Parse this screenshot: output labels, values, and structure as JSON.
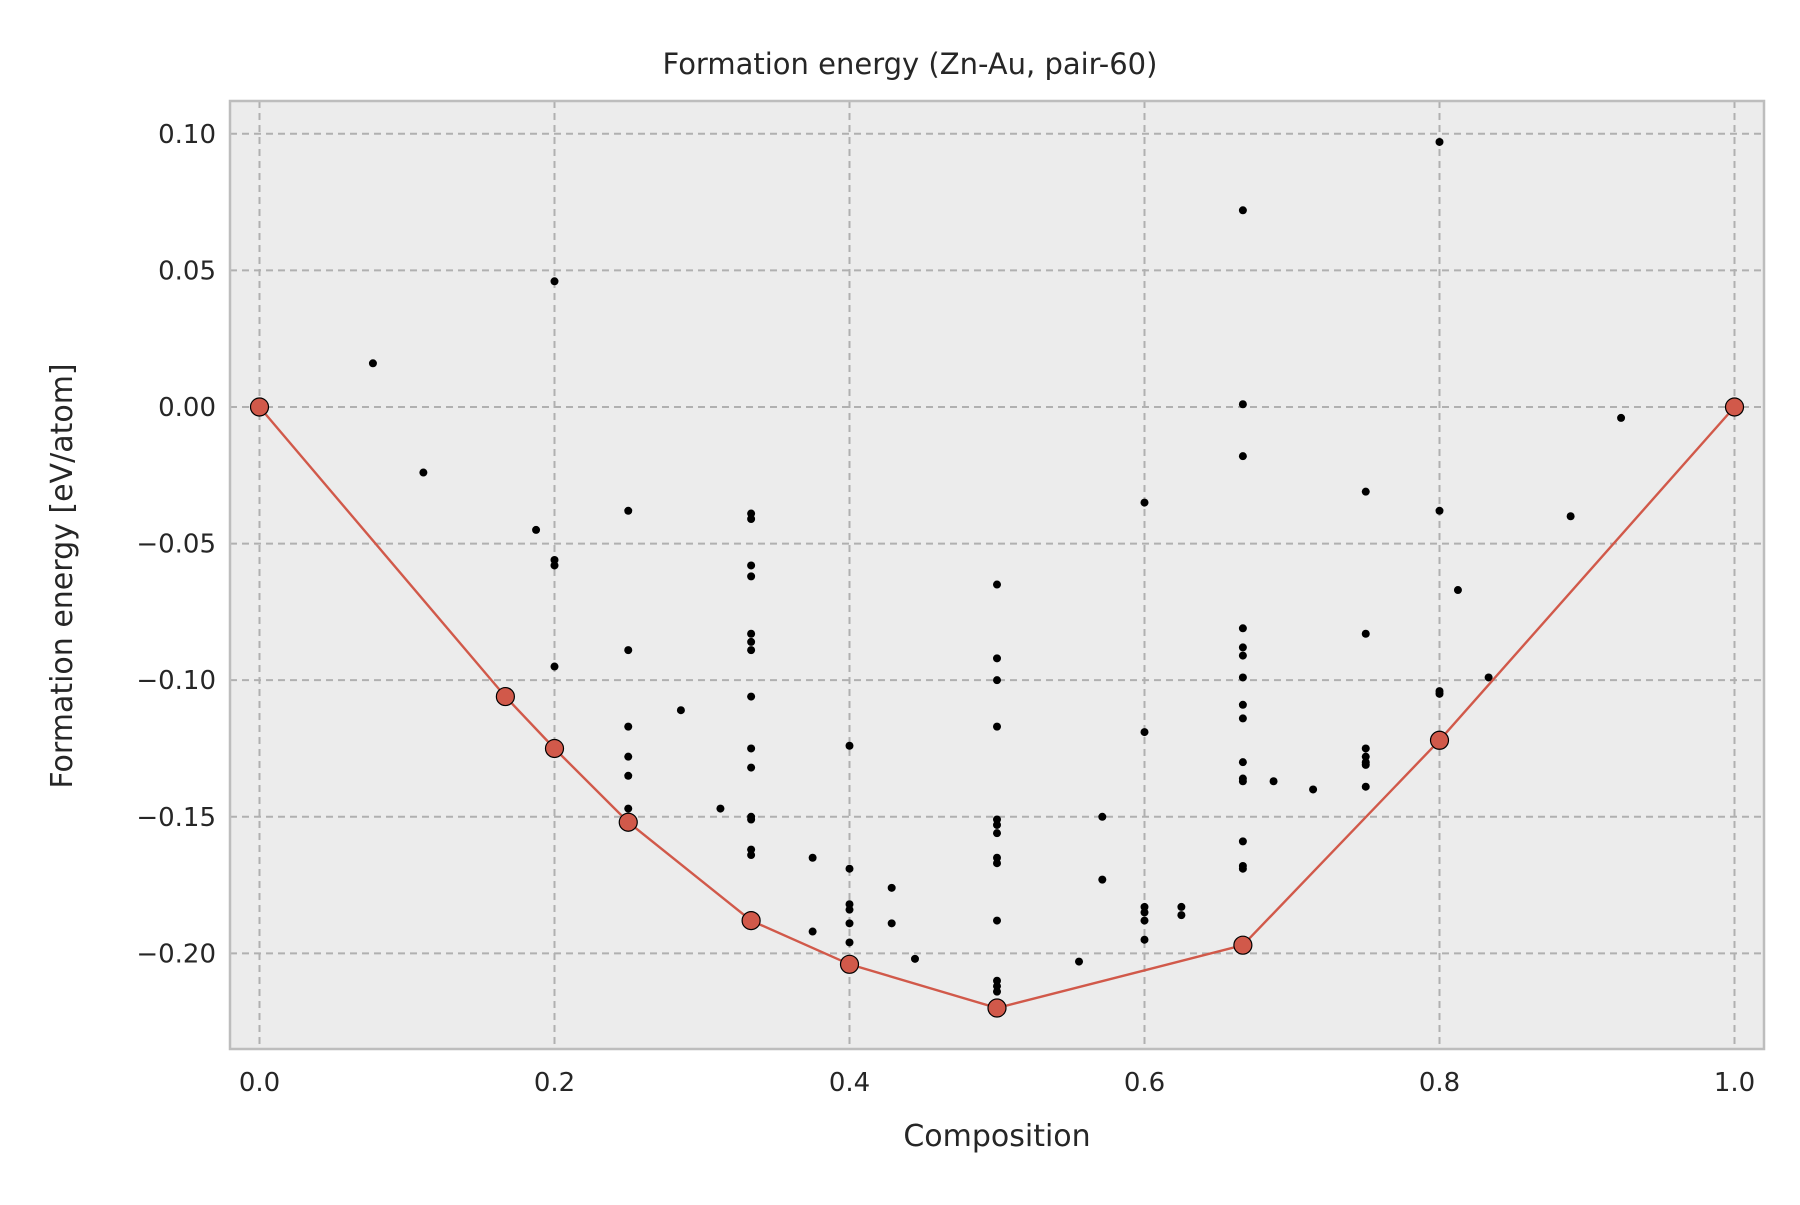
{
  "chart_data": {
    "type": "scatter",
    "title": "Formation energy (Zn-Au, pair-60)",
    "xlabel": "Composition",
    "ylabel": "Formation energy [eV/atom]",
    "xlim": [
      -0.02,
      1.02
    ],
    "ylim": [
      -0.235,
      0.112
    ],
    "xticks": [
      0.0,
      0.2,
      0.4,
      0.6,
      0.8,
      1.0
    ],
    "xtick_labels": [
      "0.0",
      "0.2",
      "0.4",
      "0.6",
      "0.8",
      "1.0"
    ],
    "yticks": [
      0.1,
      0.05,
      0.0,
      -0.05,
      -0.1,
      -0.15,
      -0.2
    ],
    "ytick_labels": [
      "0.10",
      "0.05",
      "0.00",
      "−0.05",
      "−0.10",
      "−0.15",
      "−0.20"
    ],
    "grid": true,
    "colors": {
      "background": "#ececec",
      "frame": "#bdbdbd",
      "grid": "#b0b0b0",
      "hull": "#d1594a",
      "points": "#000000"
    },
    "series": [
      {
        "name": "structures",
        "points": [
          [
            0.0769,
            0.016
          ],
          [
            0.1111,
            -0.024
          ],
          [
            0.1875,
            -0.045
          ],
          [
            0.2,
            0.046
          ],
          [
            0.2,
            -0.056
          ],
          [
            0.2,
            -0.058
          ],
          [
            0.2,
            -0.095
          ],
          [
            0.25,
            -0.038
          ],
          [
            0.25,
            -0.089
          ],
          [
            0.25,
            -0.117
          ],
          [
            0.25,
            -0.128
          ],
          [
            0.25,
            -0.135
          ],
          [
            0.25,
            -0.147
          ],
          [
            0.2857,
            -0.111
          ],
          [
            0.3125,
            -0.147
          ],
          [
            0.3333,
            -0.039
          ],
          [
            0.3333,
            -0.041
          ],
          [
            0.3333,
            -0.058
          ],
          [
            0.3333,
            -0.062
          ],
          [
            0.3333,
            -0.083
          ],
          [
            0.3333,
            -0.086
          ],
          [
            0.3333,
            -0.089
          ],
          [
            0.3333,
            -0.106
          ],
          [
            0.3333,
            -0.125
          ],
          [
            0.3333,
            -0.132
          ],
          [
            0.3333,
            -0.15
          ],
          [
            0.3333,
            -0.151
          ],
          [
            0.3333,
            -0.162
          ],
          [
            0.3333,
            -0.164
          ],
          [
            0.375,
            -0.165
          ],
          [
            0.375,
            -0.192
          ],
          [
            0.4,
            -0.124
          ],
          [
            0.4,
            -0.169
          ],
          [
            0.4,
            -0.182
          ],
          [
            0.4,
            -0.184
          ],
          [
            0.4,
            -0.189
          ],
          [
            0.4,
            -0.196
          ],
          [
            0.4286,
            -0.176
          ],
          [
            0.4286,
            -0.189
          ],
          [
            0.4444,
            -0.202
          ],
          [
            0.5,
            -0.065
          ],
          [
            0.5,
            -0.092
          ],
          [
            0.5,
            -0.1
          ],
          [
            0.5,
            -0.117
          ],
          [
            0.5,
            -0.151
          ],
          [
            0.5,
            -0.153
          ],
          [
            0.5,
            -0.156
          ],
          [
            0.5,
            -0.165
          ],
          [
            0.5,
            -0.167
          ],
          [
            0.5,
            -0.188
          ],
          [
            0.5,
            -0.21
          ],
          [
            0.5,
            -0.212
          ],
          [
            0.5,
            -0.214
          ],
          [
            0.5556,
            -0.203
          ],
          [
            0.5714,
            -0.15
          ],
          [
            0.5714,
            -0.173
          ],
          [
            0.6,
            -0.035
          ],
          [
            0.6,
            -0.119
          ],
          [
            0.6,
            -0.183
          ],
          [
            0.6,
            -0.185
          ],
          [
            0.6,
            -0.188
          ],
          [
            0.6,
            -0.195
          ],
          [
            0.625,
            -0.183
          ],
          [
            0.625,
            -0.186
          ],
          [
            0.6667,
            0.072
          ],
          [
            0.6667,
            0.001
          ],
          [
            0.6667,
            -0.018
          ],
          [
            0.6667,
            -0.081
          ],
          [
            0.6667,
            -0.088
          ],
          [
            0.6667,
            -0.091
          ],
          [
            0.6667,
            -0.099
          ],
          [
            0.6667,
            -0.109
          ],
          [
            0.6667,
            -0.114
          ],
          [
            0.6667,
            -0.13
          ],
          [
            0.6667,
            -0.136
          ],
          [
            0.6667,
            -0.137
          ],
          [
            0.6667,
            -0.159
          ],
          [
            0.6667,
            -0.168
          ],
          [
            0.6667,
            -0.169
          ],
          [
            0.6875,
            -0.137
          ],
          [
            0.7143,
            -0.14
          ],
          [
            0.75,
            -0.031
          ],
          [
            0.75,
            -0.083
          ],
          [
            0.75,
            -0.125
          ],
          [
            0.75,
            -0.128
          ],
          [
            0.75,
            -0.13
          ],
          [
            0.75,
            -0.131
          ],
          [
            0.75,
            -0.139
          ],
          [
            0.8,
            0.097
          ],
          [
            0.8,
            -0.038
          ],
          [
            0.8,
            -0.104
          ],
          [
            0.8,
            -0.105
          ],
          [
            0.8125,
            -0.067
          ],
          [
            0.8333,
            -0.099
          ],
          [
            0.8889,
            -0.04
          ],
          [
            0.9231,
            -0.004
          ]
        ]
      },
      {
        "name": "convex hull",
        "points": [
          [
            0.0,
            0.0
          ],
          [
            0.1667,
            -0.106
          ],
          [
            0.2,
            -0.125
          ],
          [
            0.25,
            -0.152
          ],
          [
            0.3333,
            -0.188
          ],
          [
            0.4,
            -0.204
          ],
          [
            0.5,
            -0.22
          ],
          [
            0.6667,
            -0.197
          ],
          [
            0.8,
            -0.122
          ],
          [
            1.0,
            0.0
          ]
        ]
      }
    ]
  }
}
